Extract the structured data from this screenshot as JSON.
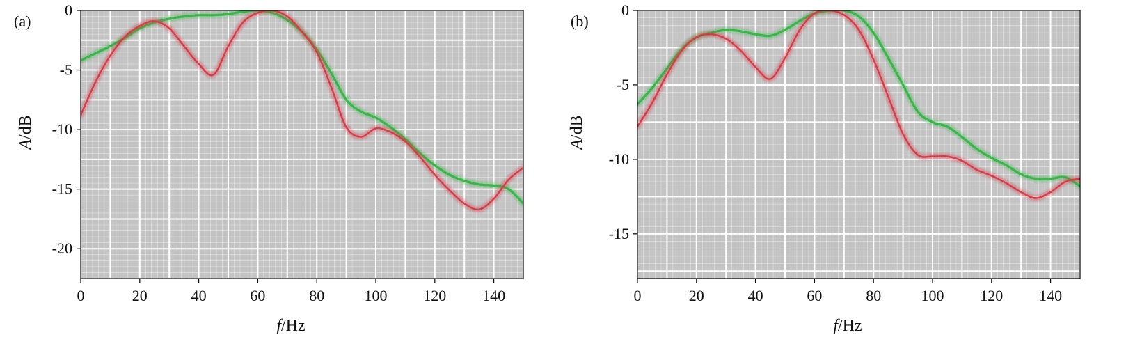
{
  "chart_data": [
    {
      "type": "line",
      "panel_label": "(a)",
      "xlabel_italic": "f",
      "xlabel_unit": "/Hz",
      "ylabel_italic": "A",
      "ylabel_unit": "/dB",
      "xlim": [
        0,
        150
      ],
      "ylim": [
        -22.5,
        0
      ],
      "xticks": [
        "0",
        "20",
        "40",
        "60",
        "80",
        "100",
        "120",
        "140"
      ],
      "yticks": [
        "0",
        "-5",
        "-10",
        "-15",
        "-20"
      ],
      "grid": true,
      "background_color": "#c4c4c4",
      "series": [
        {
          "color": "#39b54a",
          "x": [
            0,
            5,
            10,
            15,
            20,
            25,
            30,
            35,
            40,
            45,
            50,
            55,
            60,
            65,
            70,
            75,
            80,
            85,
            90,
            95,
            100,
            105,
            110,
            115,
            120,
            125,
            130,
            135,
            140,
            145,
            150
          ],
          "y": [
            -4.2,
            -3.6,
            -3.0,
            -2.3,
            -1.5,
            -1.0,
            -0.7,
            -0.5,
            -0.4,
            -0.4,
            -0.3,
            -0.1,
            0.0,
            -0.2,
            -0.8,
            -1.8,
            -3.3,
            -5.3,
            -7.5,
            -8.5,
            -9.0,
            -9.8,
            -10.8,
            -12.0,
            -13.0,
            -13.8,
            -14.3,
            -14.6,
            -14.7,
            -15.0,
            -16.2
          ]
        },
        {
          "color": "#d63b47",
          "x": [
            0,
            5,
            10,
            15,
            20,
            25,
            30,
            35,
            40,
            45,
            50,
            55,
            60,
            65,
            70,
            75,
            80,
            85,
            90,
            95,
            100,
            105,
            110,
            115,
            120,
            125,
            130,
            135,
            140,
            145,
            150
          ],
          "y": [
            -8.8,
            -6.0,
            -3.8,
            -2.2,
            -1.3,
            -0.9,
            -1.5,
            -3.0,
            -4.5,
            -5.4,
            -3.0,
            -1.0,
            -0.2,
            0.0,
            -0.5,
            -1.8,
            -3.5,
            -6.5,
            -9.8,
            -10.6,
            -9.9,
            -10.2,
            -11.0,
            -12.3,
            -13.8,
            -15.1,
            -16.2,
            -16.7,
            -15.8,
            -14.2,
            -13.2
          ]
        }
      ]
    },
    {
      "type": "line",
      "panel_label": "(b)",
      "xlabel_italic": "f",
      "xlabel_unit": "/Hz",
      "ylabel_italic": "A",
      "ylabel_unit": "/dB",
      "xlim": [
        0,
        150
      ],
      "ylim": [
        -18,
        0
      ],
      "xticks": [
        "0",
        "20",
        "40",
        "60",
        "80",
        "100",
        "120",
        "140"
      ],
      "yticks": [
        "0",
        "-5",
        "-10",
        "-15"
      ],
      "grid": true,
      "background_color": "#c4c4c4",
      "series": [
        {
          "color": "#39b54a",
          "x": [
            0,
            5,
            10,
            15,
            20,
            25,
            30,
            35,
            40,
            45,
            50,
            55,
            60,
            65,
            70,
            75,
            80,
            85,
            90,
            95,
            100,
            105,
            110,
            115,
            120,
            125,
            130,
            135,
            140,
            145,
            150
          ],
          "y": [
            -6.3,
            -5.2,
            -3.9,
            -2.6,
            -1.8,
            -1.5,
            -1.3,
            -1.4,
            -1.6,
            -1.7,
            -1.3,
            -0.7,
            -0.2,
            0.0,
            0.0,
            -0.4,
            -1.5,
            -3.2,
            -5.0,
            -6.8,
            -7.5,
            -7.8,
            -8.5,
            -9.3,
            -9.9,
            -10.4,
            -11.0,
            -11.3,
            -11.3,
            -11.2,
            -11.8
          ]
        },
        {
          "color": "#d63b47",
          "x": [
            0,
            5,
            10,
            15,
            20,
            25,
            30,
            35,
            40,
            45,
            50,
            55,
            60,
            65,
            70,
            75,
            80,
            85,
            90,
            95,
            100,
            105,
            110,
            115,
            120,
            125,
            130,
            135,
            140,
            145,
            150
          ],
          "y": [
            -7.8,
            -6.2,
            -4.3,
            -2.7,
            -1.8,
            -1.6,
            -1.9,
            -2.7,
            -3.8,
            -4.6,
            -3.2,
            -1.3,
            -0.2,
            0.0,
            -0.3,
            -1.3,
            -3.3,
            -5.8,
            -8.3,
            -9.7,
            -9.8,
            -9.8,
            -10.1,
            -10.7,
            -11.1,
            -11.6,
            -12.2,
            -12.6,
            -12.2,
            -11.5,
            -11.3
          ]
        }
      ]
    }
  ]
}
